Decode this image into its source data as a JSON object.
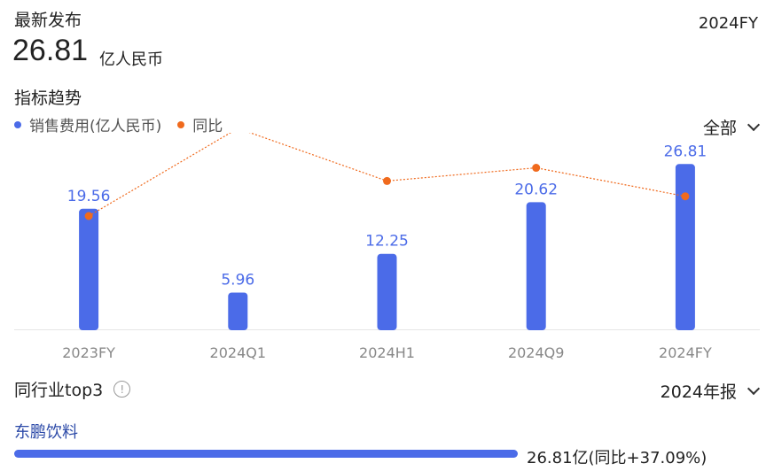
{
  "header": {
    "latest_label": "最新发布",
    "period": "2024FY",
    "value": "26.81",
    "unit": "亿人民币"
  },
  "trend": {
    "title": "指标趋势",
    "range_select": "全部"
  },
  "colors": {
    "bar": "#4b6be8",
    "yoy": "#f06a1d",
    "label": "#4b6be8",
    "axis": "#e6e6e6"
  },
  "chart_data": {
    "type": "bar",
    "categories": [
      "2023FY",
      "2024Q1",
      "2024H1",
      "2024Q9",
      "2024FY"
    ],
    "series": [
      {
        "name": "销售费用(亿人民币)",
        "type": "bar",
        "values": [
          19.56,
          5.96,
          12.25,
          20.62,
          26.81
        ]
      },
      {
        "name": "同比",
        "type": "line",
        "values": [
          0.28,
          0.68,
          0.44,
          0.5,
          0.37
        ]
      }
    ],
    "data_labels": [
      "19.56",
      "5.96",
      "12.25",
      "20.62",
      "26.81"
    ],
    "ylim": [
      0,
      28
    ],
    "grid": false,
    "legend": "top-left"
  },
  "peers": {
    "title": "同行业top3",
    "year_select": "2024年报",
    "items": [
      {
        "name": "东鹏饮料",
        "value_text": "26.81亿(同比+37.09%)",
        "fraction": 1.0
      }
    ]
  }
}
